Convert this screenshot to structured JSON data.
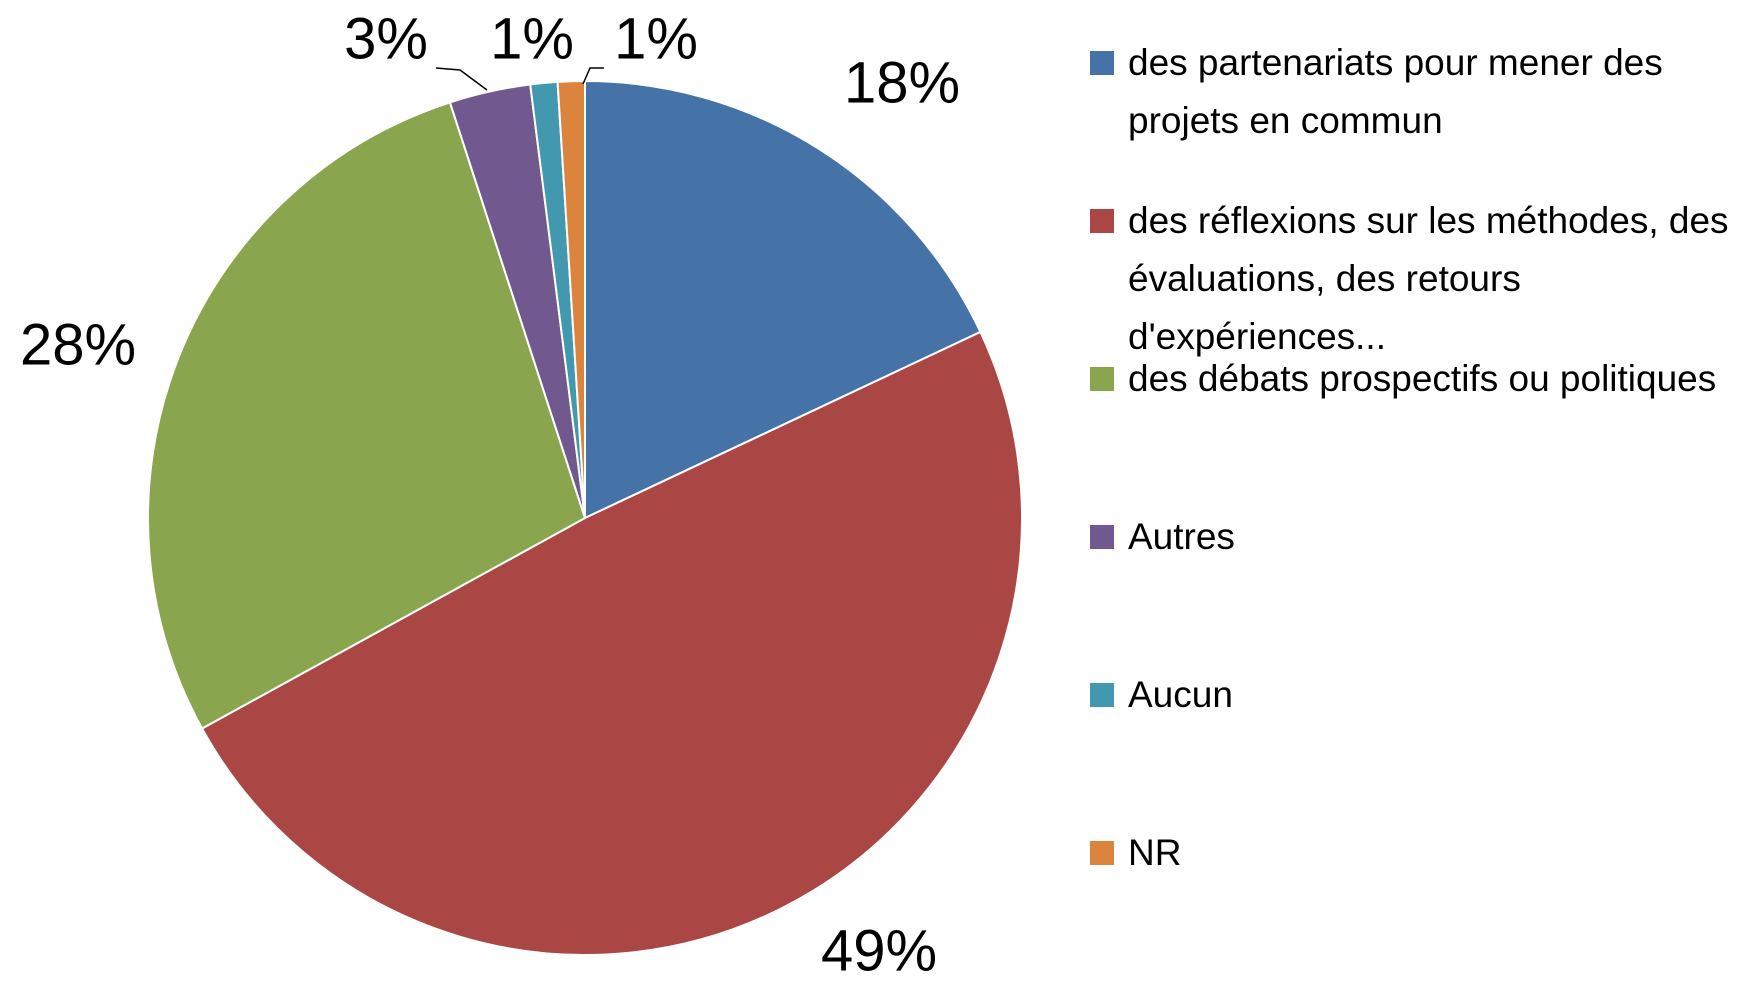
{
  "chart_data": {
    "type": "pie",
    "categories": [
      "des partenariats pour mener des projets en commun",
      "des réflexions sur les méthodes, des évaluations, des retours d'expériences...",
      "des débats prospectifs ou politiques",
      "Autres",
      "Aucun",
      "NR"
    ],
    "values": [
      18,
      49,
      28,
      3,
      1,
      1
    ],
    "value_labels": [
      "18%",
      "49%",
      "28%",
      "3%",
      "1%",
      "1%"
    ],
    "colors": [
      "#4572a7",
      "#aa4643",
      "#89a54e",
      "#71588f",
      "#4198af",
      "#db843d"
    ],
    "legend": "right"
  }
}
